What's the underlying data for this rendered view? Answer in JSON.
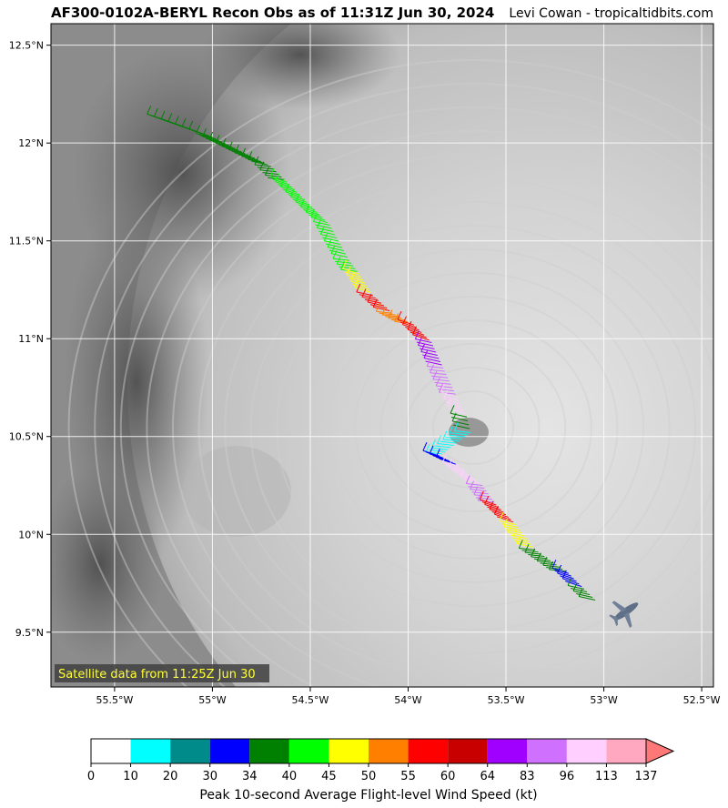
{
  "header": {
    "title": "AF300-0102A-BERYL Recon Obs as of 11:31Z Jun 30, 2024",
    "credit": "Levi Cowan - tropicaltidbits.com"
  },
  "map": {
    "lat_ticks": [
      "12.5°N",
      "12°N",
      "11.5°N",
      "11°N",
      "10.5°N",
      "10°N",
      "9.5°N"
    ],
    "lon_ticks": [
      "55.5°W",
      "55°W",
      "54.5°W",
      "54°W",
      "53.5°W",
      "53°W",
      "52.5°W"
    ],
    "satellite_label": "Satellite data from 11:25Z Jun 30",
    "aircraft_icon": "airplane-icon"
  },
  "colorbar": {
    "title": "Peak 10-second Average Flight-level Wind Speed (kt)",
    "ticks": [
      "0",
      "10",
      "20",
      "30",
      "34",
      "40",
      "45",
      "50",
      "55",
      "60",
      "64",
      "83",
      "96",
      "113",
      "137"
    ],
    "colors": [
      "#ffffff",
      "#00ffff",
      "#008b8b",
      "#0000ff",
      "#008000",
      "#00ff00",
      "#ffff00",
      "#ff8000",
      "#ff0000",
      "#c80000",
      "#a000ff",
      "#d070ff",
      "#ffd0ff",
      "#ffa8c0"
    ],
    "extend_color": "#ff7878"
  },
  "track": [
    {
      "lon": -55.25,
      "lat": 12.12,
      "color": "#008000"
    },
    {
      "lon": -55.0,
      "lat": 12.03,
      "color": "#008000"
    },
    {
      "lon": -54.7,
      "lat": 11.88,
      "color": "#008000"
    },
    {
      "lon": -54.62,
      "lat": 11.8,
      "color": "#00ff00"
    },
    {
      "lon": -54.4,
      "lat": 11.58,
      "color": "#00ff00"
    },
    {
      "lon": -54.3,
      "lat": 11.4,
      "color": "#00ff00"
    },
    {
      "lon": -54.25,
      "lat": 11.33,
      "color": "#ffff00"
    },
    {
      "lon": -54.18,
      "lat": 11.22,
      "color": "#ff0000"
    },
    {
      "lon": -54.08,
      "lat": 11.13,
      "color": "#ff8000"
    },
    {
      "lon": -53.97,
      "lat": 11.07,
      "color": "#ff0000"
    },
    {
      "lon": -53.88,
      "lat": 10.98,
      "color": "#a000ff"
    },
    {
      "lon": -53.82,
      "lat": 10.85,
      "color": "#d070ff"
    },
    {
      "lon": -53.75,
      "lat": 10.7,
      "color": "#ffd0ff"
    },
    {
      "lon": -53.7,
      "lat": 10.6,
      "color": "#008000"
    },
    {
      "lon": -53.68,
      "lat": 10.52,
      "color": "#00ffff"
    },
    {
      "lon": -53.84,
      "lat": 10.4,
      "color": "#0000ff"
    },
    {
      "lon": -53.74,
      "lat": 10.35,
      "color": "#ffd0ff"
    },
    {
      "lon": -53.62,
      "lat": 10.25,
      "color": "#d070ff"
    },
    {
      "lon": -53.55,
      "lat": 10.15,
      "color": "#ff0000"
    },
    {
      "lon": -53.45,
      "lat": 10.05,
      "color": "#ffff00"
    },
    {
      "lon": -53.35,
      "lat": 9.92,
      "color": "#008000"
    },
    {
      "lon": -53.18,
      "lat": 9.8,
      "color": "#0000ff"
    },
    {
      "lon": -53.1,
      "lat": 9.72,
      "color": "#008000"
    },
    {
      "lon": -53.03,
      "lat": 9.65,
      "color": "#00ff00"
    }
  ]
}
